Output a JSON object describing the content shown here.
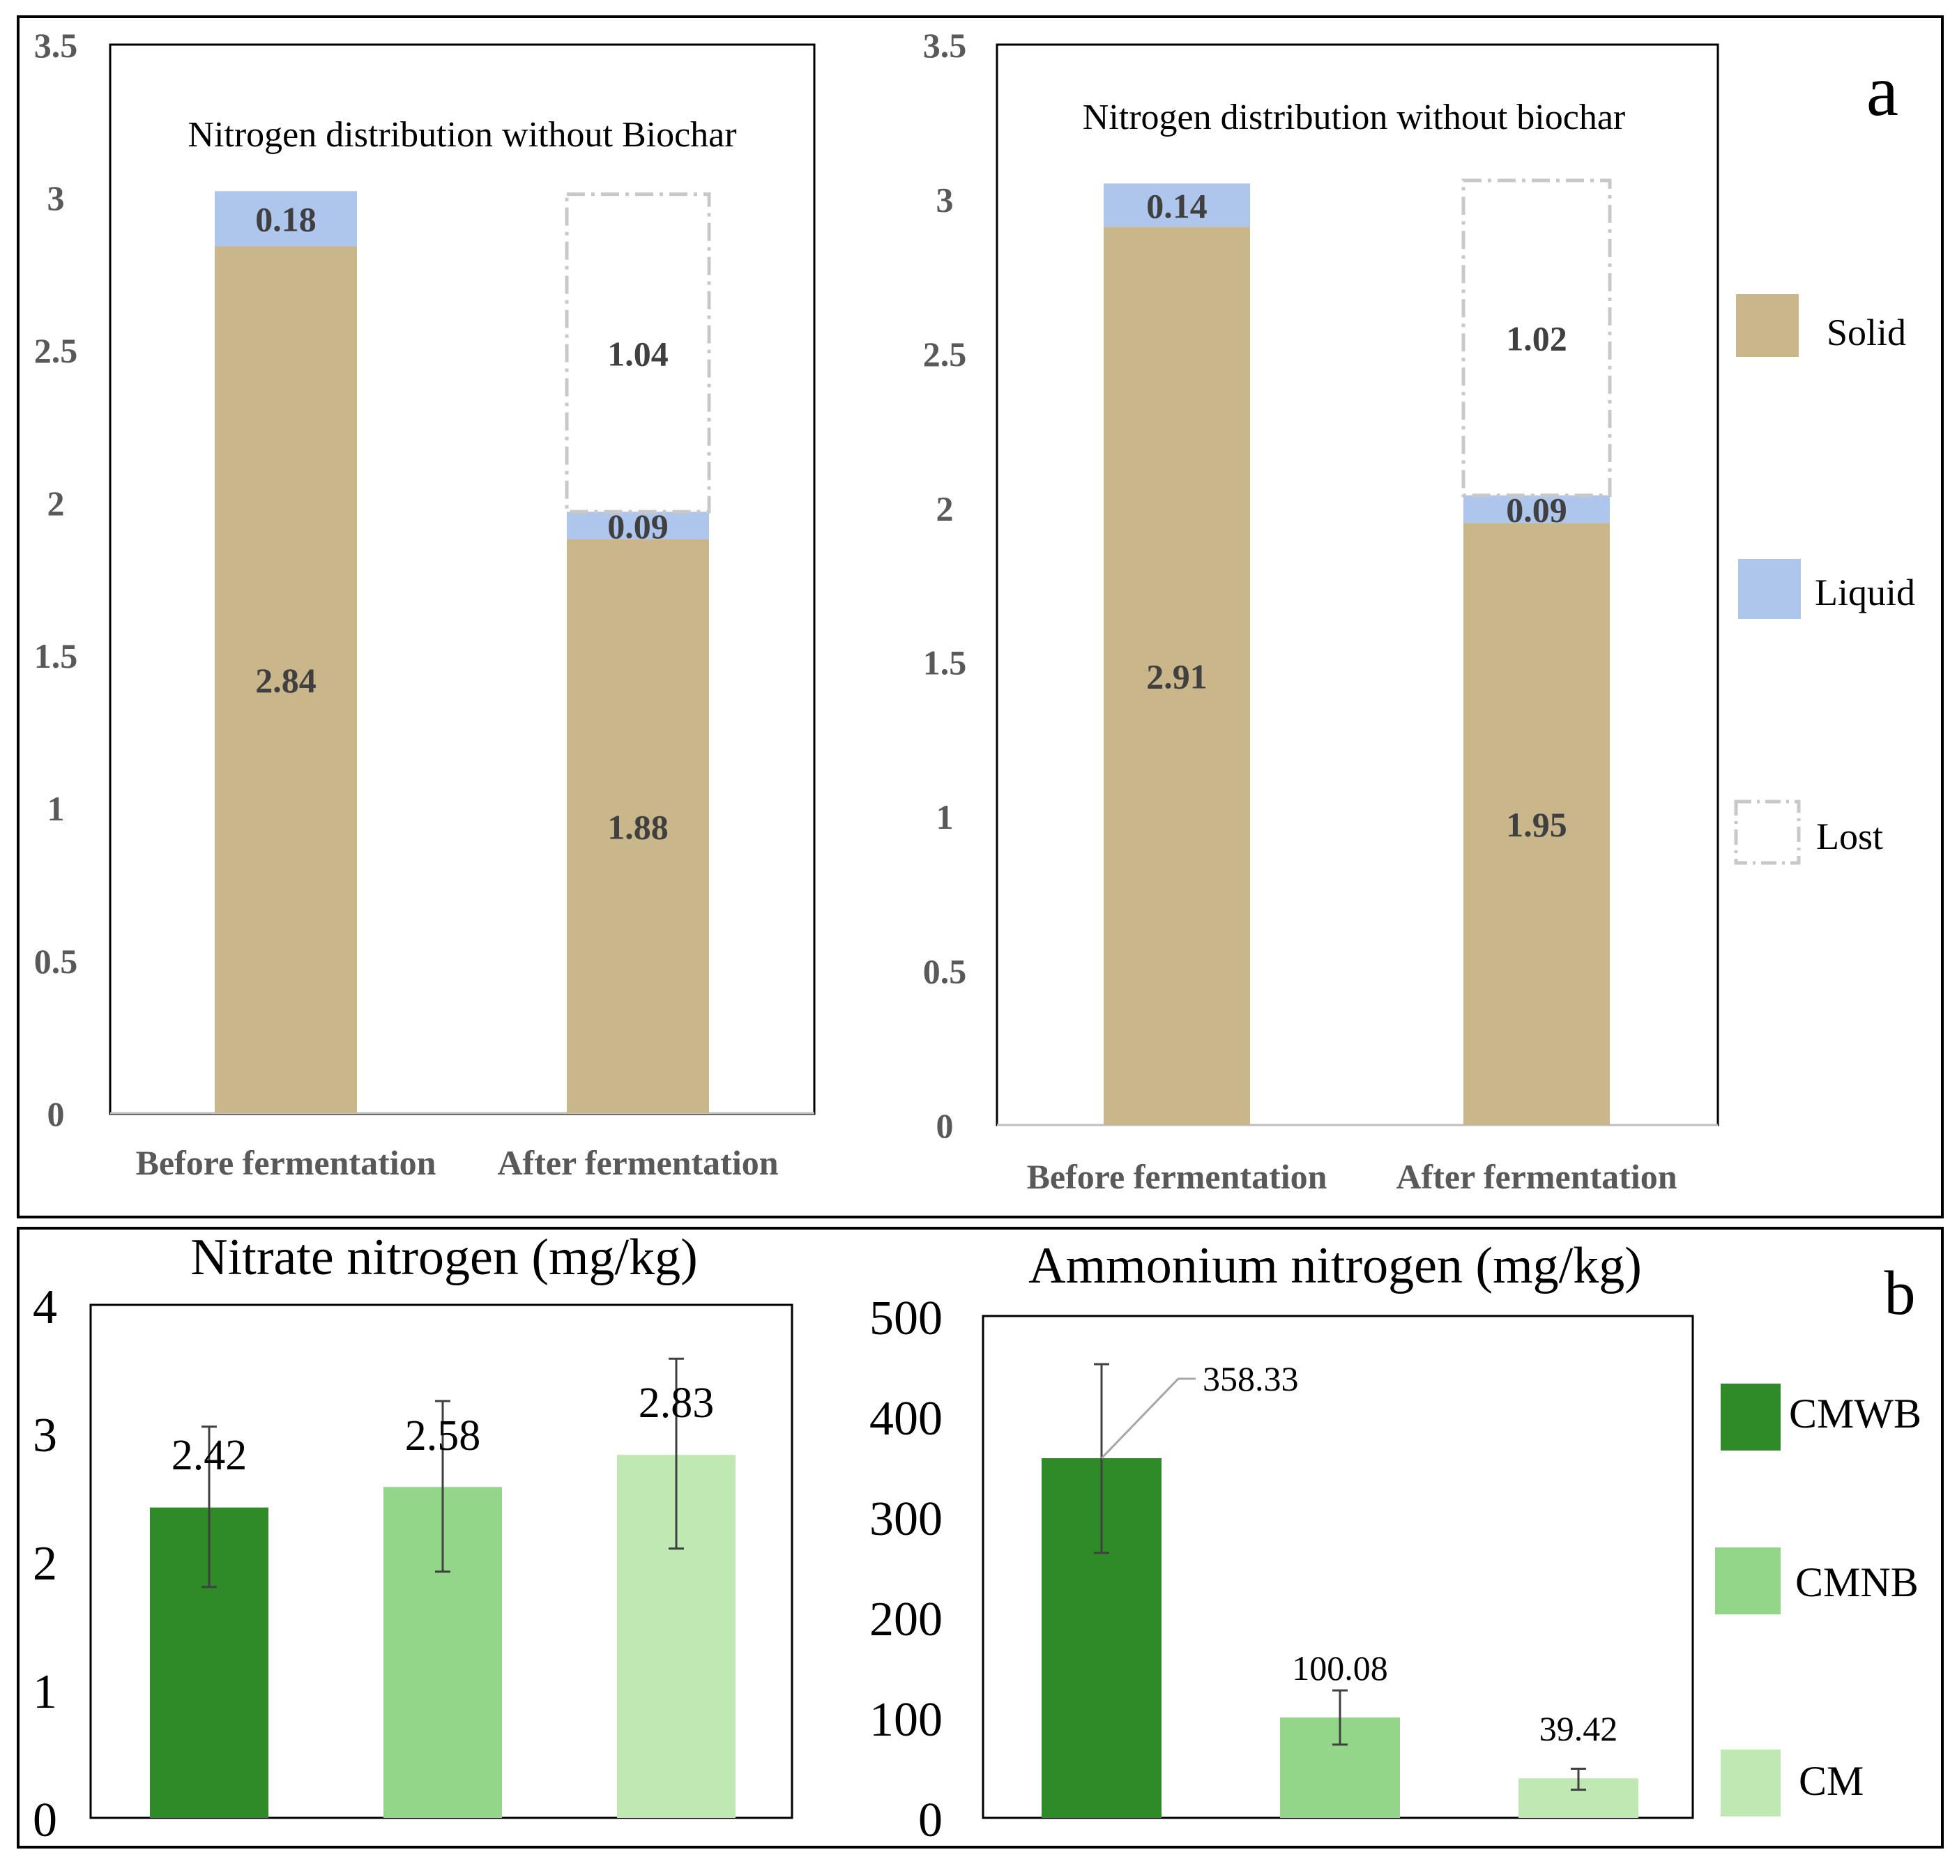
{
  "colors": {
    "solid": "#c9b68a",
    "liquid": "#afc6ec",
    "lost_border": "#c8c8c8",
    "cmwb": "#2e8b28",
    "cmnb": "#93d68a",
    "cm": "#bfe8b2",
    "frame": "#000000",
    "tick_text": "#595959",
    "error_bar": "#404040"
  },
  "panel_labels": {
    "a": "a",
    "b": "b"
  },
  "legend_a": {
    "solid": "Solid",
    "liquid": "Liquid",
    "lost": "Lost"
  },
  "legend_b": {
    "cmwb": "CMWB",
    "cmnb": "CMNB",
    "cm": "CM"
  },
  "chart_data": [
    {
      "type": "bar",
      "stacked": true,
      "title": "Nitrogen distribution without Biochar",
      "categories": [
        "Before fermentation",
        "After fermentation"
      ],
      "y_ticks": [
        "0",
        "0.5",
        "1",
        "1.5",
        "2",
        "2.5",
        "3",
        "3.5"
      ],
      "ylim": [
        0,
        3.5
      ],
      "series": [
        {
          "name": "Solid",
          "values": [
            2.84,
            1.88
          ],
          "labels": [
            "2.84",
            "1.88"
          ]
        },
        {
          "name": "Liquid",
          "values": [
            0.18,
            0.09
          ],
          "labels": [
            "0.18",
            "0.09"
          ]
        },
        {
          "name": "Lost",
          "values": [
            0,
            1.04
          ],
          "labels": [
            "",
            "1.04"
          ]
        }
      ]
    },
    {
      "type": "bar",
      "stacked": true,
      "title": "Nitrogen distribution without biochar",
      "categories": [
        "Before fermentation",
        "After fermentation"
      ],
      "y_ticks": [
        "0",
        "0.5",
        "1",
        "1.5",
        "2",
        "2.5",
        "3",
        "3.5"
      ],
      "ylim": [
        0,
        3.5
      ],
      "series": [
        {
          "name": "Solid",
          "values": [
            2.91,
            1.95
          ],
          "labels": [
            "2.91",
            "1.95"
          ]
        },
        {
          "name": "Liquid",
          "values": [
            0.14,
            0.09
          ],
          "labels": [
            "0.14",
            "0.09"
          ]
        },
        {
          "name": "Lost",
          "values": [
            0,
            1.02
          ],
          "labels": [
            "",
            "1.02"
          ]
        }
      ]
    },
    {
      "type": "bar",
      "title": "Nitrate nitrogen (mg/kg)",
      "categories": [
        "CMWB",
        "CMNB",
        "CM"
      ],
      "values": [
        2.42,
        2.58,
        2.83
      ],
      "labels": [
        "2.42",
        "2.58",
        "2.83"
      ],
      "error_low": [
        1.8,
        1.92,
        2.1
      ],
      "error_high": [
        3.05,
        3.25,
        3.58
      ],
      "y_ticks": [
        "0",
        "1",
        "2",
        "3",
        "4"
      ],
      "ylim": [
        0,
        4
      ]
    },
    {
      "type": "bar",
      "title": "Ammonium nitrogen (mg/kg)",
      "categories": [
        "CMWB",
        "CMNB",
        "CM"
      ],
      "values": [
        358.33,
        100.08,
        39.42
      ],
      "labels": [
        "358.33",
        "100.08",
        "39.42"
      ],
      "error_low": [
        264,
        73,
        28
      ],
      "error_high": [
        452,
        127,
        49
      ],
      "y_ticks": [
        "0",
        "100",
        "200",
        "300",
        "400",
        "500"
      ],
      "ylim": [
        0,
        500
      ]
    }
  ]
}
